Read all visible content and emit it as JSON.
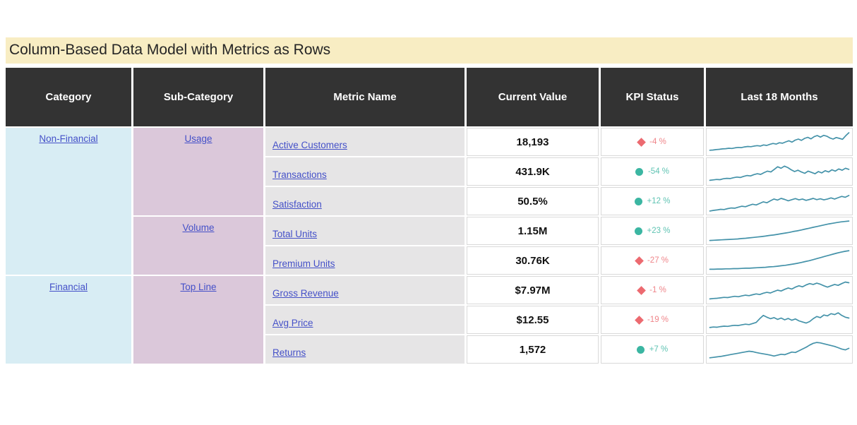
{
  "colors": {
    "title_bg": "#f8edc3",
    "title_text": "#252525",
    "header_bg": "#333333",
    "header_text": "#ffffff",
    "category_bg": "#d8edf4",
    "subcategory_bg": "#dbc8da",
    "metric_bg": "#e6e5e6",
    "cell_border": "#d9d9d9",
    "link": "#4450c8",
    "kpi_negative_red": "#ec6a70",
    "kpi_positive_teal": "#3bb6a2",
    "sparkline": "#4492a9"
  },
  "chart_data": {
    "type": "table",
    "title": "Column-Based Data Model with Metrics as Rows",
    "columns": [
      "Category",
      "Sub-Category",
      "Metric Name",
      "Current Value",
      "KPI Status",
      "Last 18 Months"
    ],
    "category_groups": [
      {
        "label": "Non-Financial",
        "rows": 5
      },
      {
        "label": "Financial",
        "rows": 3
      }
    ],
    "subcategory_groups": [
      {
        "label": "Usage",
        "rows": 3
      },
      {
        "label": "Volume",
        "rows": 2
      },
      {
        "label": "Top Line",
        "rows": 3
      }
    ],
    "rows": [
      {
        "category": "Non-Financial",
        "sub_category": "Usage",
        "metric": "Active Customers",
        "current_value": "18,193",
        "kpi_status": "-4 %",
        "kpi_icon": "diamond",
        "kpi_color": "#ec6a70",
        "sparkline": [
          12,
          13,
          15,
          16,
          18,
          19,
          21,
          20,
          23,
          25,
          24,
          27,
          29,
          28,
          31,
          33,
          31,
          36,
          34,
          39,
          43,
          40,
          46,
          44,
          50,
          55,
          49,
          58,
          63,
          57,
          66,
          71,
          64,
          74,
          79,
          72,
          80,
          76,
          68,
          63,
          70,
          66,
          62,
          78,
          92
        ]
      },
      {
        "category": "Non-Financial",
        "sub_category": "Usage",
        "metric": "Transactions",
        "current_value": "431.9K",
        "kpi_status": "-54 %",
        "kpi_icon": "circle",
        "kpi_color": "#3bb6a2",
        "sparkline": [
          10,
          12,
          14,
          13,
          17,
          19,
          18,
          22,
          25,
          23,
          28,
          32,
          30,
          36,
          40,
          37,
          45,
          52,
          48,
          60,
          72,
          65,
          75,
          68,
          58,
          50,
          56,
          48,
          42,
          52,
          46,
          40,
          50,
          44,
          54,
          48,
          58,
          52,
          62,
          56,
          65,
          60
        ]
      },
      {
        "category": "Non-Financial",
        "sub_category": "Usage",
        "metric": "Satisfaction",
        "current_value": "50.5%",
        "kpi_status": "+12 %",
        "kpi_icon": "circle",
        "kpi_color": "#3bb6a2",
        "sparkline": [
          5,
          8,
          10,
          13,
          12,
          16,
          19,
          18,
          23,
          27,
          25,
          31,
          36,
          33,
          40,
          47,
          43,
          52,
          60,
          55,
          63,
          58,
          52,
          57,
          62,
          56,
          60,
          54,
          58,
          63,
          57,
          61,
          56,
          60,
          65,
          60,
          66,
          72,
          68,
          76
        ]
      },
      {
        "category": "Non-Financial",
        "sub_category": "Volume",
        "metric": "Total Units",
        "current_value": "1.15M",
        "kpi_status": "+23 %",
        "kpi_icon": "circle",
        "kpi_color": "#3bb6a2",
        "sparkline": [
          6,
          7,
          8,
          9,
          10,
          11,
          12,
          13,
          15,
          16,
          18,
          20,
          22,
          24,
          26,
          29,
          31,
          34,
          37,
          40,
          43,
          47,
          50,
          54,
          58,
          62,
          66,
          70,
          74,
          78,
          82,
          85,
          88,
          91,
          93,
          95
        ]
      },
      {
        "category": "Non-Financial",
        "sub_category": "Volume",
        "metric": "Premium Units",
        "current_value": "30.76K",
        "kpi_status": "-27 %",
        "kpi_icon": "diamond",
        "kpi_color": "#ec6a70",
        "sparkline": [
          10,
          10,
          11,
          11,
          12,
          12,
          13,
          13,
          14,
          15,
          15,
          16,
          17,
          18,
          19,
          21,
          22,
          24,
          26,
          28,
          31,
          34,
          37,
          41,
          45,
          49,
          54,
          59,
          64,
          69,
          74,
          79,
          84,
          88,
          92,
          95
        ]
      },
      {
        "category": "Financial",
        "sub_category": "Top Line",
        "metric": "Gross Revenue",
        "current_value": "$7.97M",
        "kpi_status": "-1 %",
        "kpi_icon": "diamond",
        "kpi_color": "#ec6a70",
        "sparkline": [
          10,
          12,
          13,
          15,
          17,
          16,
          19,
          22,
          20,
          24,
          27,
          25,
          29,
          33,
          30,
          36,
          40,
          37,
          44,
          50,
          46,
          54,
          60,
          55,
          64,
          70,
          65,
          74,
          80,
          76,
          82,
          77,
          70,
          64,
          70,
          76,
          72,
          80,
          87,
          84
        ]
      },
      {
        "category": "Financial",
        "sub_category": "Top Line",
        "metric": "Avg Price",
        "current_value": "$12.55",
        "kpi_status": "-19 %",
        "kpi_icon": "diamond",
        "kpi_color": "#ec6a70",
        "sparkline": [
          15,
          17,
          16,
          19,
          21,
          20,
          23,
          25,
          24,
          27,
          30,
          28,
          33,
          38,
          55,
          70,
          62,
          55,
          60,
          52,
          58,
          50,
          56,
          48,
          54,
          45,
          40,
          35,
          42,
          55,
          65,
          60,
          72,
          68,
          78,
          74,
          82,
          70,
          62,
          58
        ]
      },
      {
        "category": "Financial",
        "sub_category": "Top Line",
        "metric": "Returns",
        "current_value": "1,572",
        "kpi_status": "+7 %",
        "kpi_icon": "circle",
        "kpi_color": "#3bb6a2",
        "sparkline": [
          12,
          14,
          16,
          18,
          21,
          24,
          27,
          30,
          33,
          36,
          39,
          42,
          40,
          36,
          33,
          30,
          27,
          24,
          20,
          24,
          28,
          26,
          32,
          38,
          36,
          44,
          52,
          60,
          70,
          78,
          82,
          80,
          76,
          72,
          68,
          64,
          58,
          52,
          48,
          55
        ]
      }
    ]
  }
}
